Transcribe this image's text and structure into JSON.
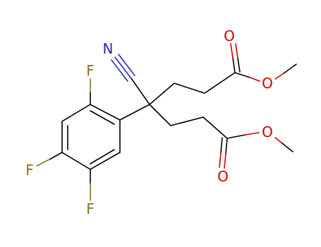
{
  "atoms": [
    "N",
    "O",
    "O",
    "O",
    "O",
    "F",
    "F",
    "F"
  ]
}
